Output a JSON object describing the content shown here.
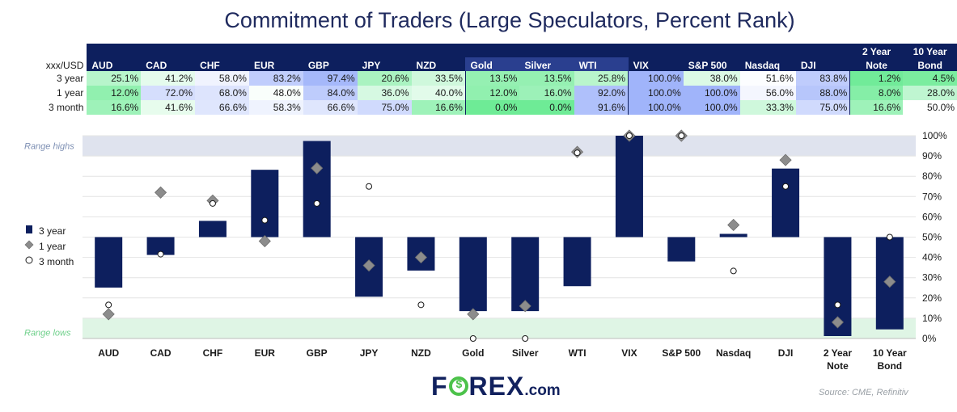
{
  "title": "Commitment of Traders (Large Speculators, Percent Rank)",
  "table": {
    "corner_label": "xxx/USD",
    "columns": [
      {
        "l1": "",
        "l2": "AUD"
      },
      {
        "l1": "",
        "l2": "CAD"
      },
      {
        "l1": "",
        "l2": "CHF"
      },
      {
        "l1": "",
        "l2": "EUR"
      },
      {
        "l1": "",
        "l2": "GBP"
      },
      {
        "l1": "",
        "l2": "JPY"
      },
      {
        "l1": "",
        "l2": "NZD"
      },
      {
        "l1": "",
        "l2": "Gold"
      },
      {
        "l1": "",
        "l2": "Silver"
      },
      {
        "l1": "",
        "l2": "WTI"
      },
      {
        "l1": "",
        "l2": "VIX"
      },
      {
        "l1": "",
        "l2": "S&P 500"
      },
      {
        "l1": "",
        "l2": "Nasdaq"
      },
      {
        "l1": "",
        "l2": "DJI"
      },
      {
        "l1": "2 Year",
        "l2": "Note"
      },
      {
        "l1": "10 Year",
        "l2": "Bond"
      }
    ],
    "rows": [
      {
        "label": "3 year",
        "values": [
          "25.1%",
          "41.2%",
          "58.0%",
          "83.2%",
          "97.4%",
          "20.6%",
          "33.5%",
          "13.5%",
          "13.5%",
          "25.8%",
          "100.0%",
          "38.0%",
          "51.6%",
          "83.8%",
          "1.2%",
          "4.5%"
        ]
      },
      {
        "label": "1 year",
        "values": [
          "12.0%",
          "72.0%",
          "68.0%",
          "48.0%",
          "84.0%",
          "36.0%",
          "40.0%",
          "12.0%",
          "16.0%",
          "92.0%",
          "100.0%",
          "100.0%",
          "56.0%",
          "88.0%",
          "8.0%",
          "28.0%"
        ]
      },
      {
        "label": "3 month",
        "values": [
          "16.6%",
          "41.6%",
          "66.6%",
          "58.3%",
          "66.6%",
          "75.0%",
          "16.6%",
          "0.0%",
          "0.0%",
          "91.6%",
          "100.0%",
          "100.0%",
          "33.3%",
          "75.0%",
          "16.6%",
          "50.0%"
        ]
      }
    ]
  },
  "chart_data": {
    "type": "bar",
    "title": "Commitment of Traders (Large Speculators, Percent Rank)",
    "categories": [
      [
        "AUD"
      ],
      [
        "CAD"
      ],
      [
        "CHF"
      ],
      [
        "EUR"
      ],
      [
        "GBP"
      ],
      [
        "JPY"
      ],
      [
        "NZD"
      ],
      [
        "Gold"
      ],
      [
        "Silver"
      ],
      [
        "WTI"
      ],
      [
        "VIX"
      ],
      [
        "S&P 500"
      ],
      [
        "Nasdaq"
      ],
      [
        "DJI"
      ],
      [
        "2 Year",
        "Note"
      ],
      [
        "10 Year",
        "Bond"
      ]
    ],
    "baseline": 50,
    "ylim": [
      0,
      100
    ],
    "y_ticks": [
      "0%",
      "10%",
      "20%",
      "30%",
      "40%",
      "50%",
      "60%",
      "70%",
      "80%",
      "90%",
      "100%"
    ],
    "bands": {
      "high_label": "Range highs",
      "high_range": [
        90,
        100
      ],
      "low_label": "Range lows",
      "low_range": [
        0,
        10
      ]
    },
    "series": [
      {
        "name": "3 year",
        "style": "bar",
        "values": [
          25.1,
          41.2,
          58.0,
          83.2,
          97.4,
          20.6,
          33.5,
          13.5,
          13.5,
          25.8,
          100.0,
          38.0,
          51.6,
          83.8,
          1.2,
          4.5
        ]
      },
      {
        "name": "1 year",
        "style": "diamond",
        "values": [
          12.0,
          72.0,
          68.0,
          48.0,
          84.0,
          36.0,
          40.0,
          12.0,
          16.0,
          92.0,
          100.0,
          100.0,
          56.0,
          88.0,
          8.0,
          28.0
        ]
      },
      {
        "name": "3 month",
        "style": "circle",
        "values": [
          16.6,
          41.6,
          66.6,
          58.3,
          66.6,
          75.0,
          16.6,
          0.0,
          0.0,
          91.6,
          100.0,
          100.0,
          33.3,
          75.0,
          16.6,
          50.0
        ]
      }
    ],
    "colors": {
      "bar": "#0d1f5e",
      "diamond": "#8c8c8c",
      "high_band": "#dfe3ee",
      "low_band": "#dff5e5",
      "high_text": "#7d8fb3",
      "low_text": "#6fd08b"
    }
  },
  "legend": [
    "3 year",
    "1 year",
    "3 month"
  ],
  "logo": {
    "part1": "F",
    "part2": "REX",
    "suffix": ".com"
  },
  "source": "Source: CME, Refinitiv"
}
